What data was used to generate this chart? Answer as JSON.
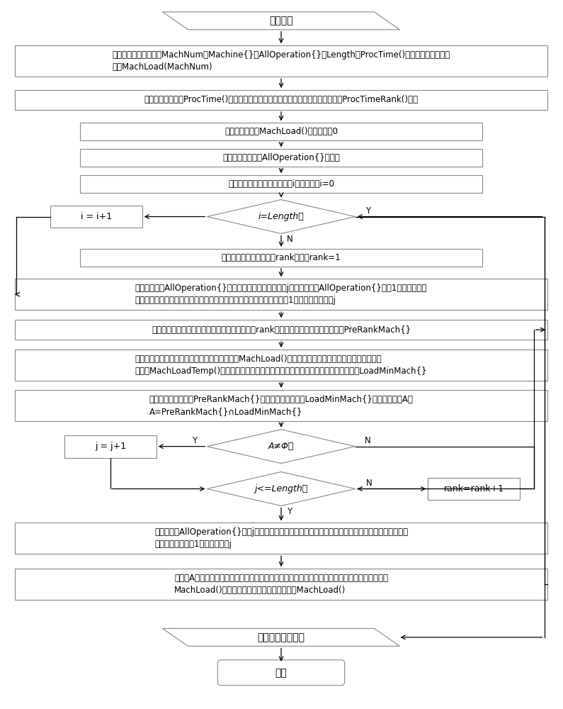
{
  "nodes": {
    "start_text": "问题输入",
    "init_text": "读取问题数据，初始化MachNum、Machine{}、AllOperation{}、Length、ProcTime()，设置一个机器负荷\n数组MachLoad(MachNum)",
    "rank_init_text": "根据加工时间数组ProcTime()工序可选机器加工时间的大小，给加工时间等级数组ProcTimeRank()赋值",
    "reset_text": "将机器负荷数组MachLoad()所有元素置0",
    "shuffle_text": "随机排列工序集合AllOperation{}的元素",
    "set_i_text": "设置已选择机器的工序数目为i，并赋初值i=0",
    "check_i_text": "i=Length？",
    "inc_i_text": "i = i+1",
    "set_rank_text": "设置优先选择的机器等级rank初值，rank=1",
    "find_j_text": "设置工序集合AllOperation{}中，工序的顺序索引变量为j，从工序集合AllOperation{}的第1个元素开始，\n查找尚未选择机器的工序，直到找到未选择机器的工序，将该工序基于1的顺序索引赋值给j",
    "pre_rank_text": "从该工序的可选机器集中，选取加工时间等级为rank的机器，组成优先等级机器集合PreRankMach{}",
    "load_min_text": "将该工序可选机器的加工时间，与机器负荷数组MachLoad()对应机器的已有负荷相加，组成机器临时负\n荷数组MachLoadTemp()，从该数组中选择临时负荷最小的机器，组成最小负荷机器集合LoadMinMach{}",
    "intersect_text": "对优先等级机器集合PreRankMach{}和最小负荷机器集合LoadMinMach{}求交集，记为A，\nA=PreRankMach{}∩LoadMinMach{}",
    "check_a_text": "A≠Φ？",
    "inc_j_text": "j = j+1",
    "check_j_text": "j<=Length？",
    "rank_inc_text": "rank=rank+1",
    "cont_find_text": "从工序集合AllOperation{}的第j个元素开始，继续查找尚未选择机器的工序，直到找到未选择机器的工\n序，将该工序基于1的索引赋值给j",
    "select_text": "从交集A中，任选一台机器，作为当前工序的加工机器，将该机器的加工时间累加到机器负荷数组\nMachLoad()的对应元素上，更新机器负荷数组MachLoad()",
    "output_text": "输出机器选择结果",
    "end_text": "结束"
  },
  "colors": {
    "rect_border": "#888888",
    "rect_fill": "#ffffff",
    "diamond_border": "#888888",
    "diamond_fill": "#ffffff",
    "para_border": "#888888",
    "para_fill": "#ffffff",
    "arrow": "#000000",
    "text": "#000000"
  }
}
